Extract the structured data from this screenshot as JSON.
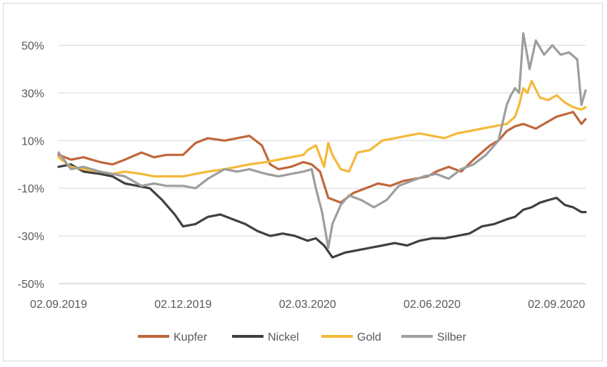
{
  "chart_data": {
    "type": "line",
    "title": "",
    "xlabel": "",
    "ylabel": "",
    "ylim": [
      -50,
      60
    ],
    "yticks": [
      -50,
      -30,
      -10,
      10,
      30,
      50
    ],
    "ytick_labels": [
      "-50%",
      "-30%",
      "-10%",
      "10%",
      "30%",
      "50%"
    ],
    "xtick_labels": [
      "02.09.2019",
      "02.12.2019",
      "02.03.2020",
      "02.06.2020",
      "02.09.2020"
    ],
    "xtick_positions": [
      0,
      3,
      6,
      9,
      12
    ],
    "x_range_months": [
      0,
      12.7
    ],
    "grid": "horizontal",
    "legend": "bottom",
    "series": [
      {
        "name": "Kupfer",
        "color": "#c0673a",
        "x": [
          0,
          0.3,
          0.6,
          1,
          1.3,
          1.6,
          2,
          2.3,
          2.6,
          3,
          3.3,
          3.6,
          4,
          4.3,
          4.6,
          4.9,
          5.1,
          5.3,
          5.6,
          5.9,
          6.1,
          6.3,
          6.5,
          6.8,
          7.1,
          7.4,
          7.7,
          8,
          8.3,
          8.6,
          8.9,
          9.1,
          9.4,
          9.7,
          10,
          10.2,
          10.4,
          10.6,
          10.8,
          11,
          11.2,
          11.5,
          11.8,
          12,
          12.2,
          12.4,
          12.6,
          12.7
        ],
        "values": [
          4,
          2,
          3,
          1,
          0,
          2,
          5,
          3,
          4,
          4,
          9,
          11,
          10,
          11,
          12,
          8,
          0,
          -2,
          -1,
          1,
          0,
          -3,
          -14,
          -16,
          -12,
          -10,
          -8,
          -9,
          -7,
          -6,
          -5,
          -3,
          -1,
          -3,
          2,
          5,
          8,
          10,
          14,
          16,
          17,
          15,
          18,
          20,
          21,
          22,
          17,
          19
        ]
      },
      {
        "name": "Nickel",
        "color": "#404040",
        "x": [
          0,
          0.3,
          0.6,
          1,
          1.3,
          1.6,
          1.9,
          2.2,
          2.5,
          2.8,
          3,
          3.3,
          3.6,
          3.9,
          4.2,
          4.5,
          4.8,
          5.1,
          5.4,
          5.7,
          6,
          6.2,
          6.4,
          6.6,
          6.9,
          7.2,
          7.5,
          7.8,
          8.1,
          8.4,
          8.7,
          9,
          9.3,
          9.6,
          9.9,
          10.2,
          10.5,
          10.8,
          11,
          11.2,
          11.4,
          11.6,
          11.8,
          12,
          12.2,
          12.4,
          12.6,
          12.7
        ],
        "values": [
          -1,
          0,
          -3,
          -4,
          -5,
          -8,
          -9,
          -10,
          -15,
          -21,
          -26,
          -25,
          -22,
          -21,
          -23,
          -25,
          -28,
          -30,
          -29,
          -30,
          -32,
          -31,
          -34,
          -39,
          -37,
          -36,
          -35,
          -34,
          -33,
          -34,
          -32,
          -31,
          -31,
          -30,
          -29,
          -26,
          -25,
          -23,
          -22,
          -19,
          -18,
          -16,
          -15,
          -14,
          -17,
          -18,
          -20,
          -20
        ]
      },
      {
        "name": "Gold",
        "color": "#f4b93a",
        "x": [
          0,
          0.3,
          0.6,
          1,
          1.3,
          1.6,
          2,
          2.3,
          2.6,
          3,
          3.3,
          3.6,
          4,
          4.3,
          4.6,
          5,
          5.3,
          5.6,
          5.9,
          6,
          6.2,
          6.4,
          6.5,
          6.6,
          6.8,
          7,
          7.2,
          7.5,
          7.8,
          8.1,
          8.4,
          8.7,
          9,
          9.3,
          9.6,
          9.9,
          10.2,
          10.5,
          10.8,
          11,
          11.1,
          11.2,
          11.3,
          11.4,
          11.6,
          11.8,
          12,
          12.2,
          12.4,
          12.6,
          12.7
        ],
        "values": [
          3,
          -1,
          -2,
          -3,
          -4,
          -3,
          -4,
          -5,
          -5,
          -5,
          -4,
          -3,
          -2,
          -1,
          0,
          1,
          2,
          3,
          4,
          6,
          8,
          -1,
          9,
          4,
          -2,
          -3,
          5,
          6,
          10,
          11,
          12,
          13,
          12,
          11,
          13,
          14,
          15,
          16,
          17,
          20,
          25,
          32,
          30,
          35,
          28,
          27,
          29,
          26,
          24,
          23,
          24
        ]
      },
      {
        "name": "Silber",
        "color": "#9e9e9e",
        "x": [
          0,
          0.3,
          0.6,
          1,
          1.3,
          1.6,
          2,
          2.3,
          2.6,
          3,
          3.3,
          3.6,
          4,
          4.3,
          4.6,
          5,
          5.3,
          5.6,
          5.9,
          6.1,
          6.2,
          6.35,
          6.5,
          6.6,
          6.8,
          7,
          7.3,
          7.6,
          7.9,
          8.2,
          8.5,
          8.8,
          9.1,
          9.4,
          9.7,
          10,
          10.3,
          10.6,
          10.8,
          10.9,
          11,
          11.1,
          11.2,
          11.35,
          11.5,
          11.7,
          11.9,
          12.1,
          12.3,
          12.5,
          12.6,
          12.7
        ],
        "values": [
          5,
          -2,
          -1,
          -3,
          -4,
          -5,
          -9,
          -8,
          -9,
          -9,
          -10,
          -6,
          -2,
          -3,
          -2,
          -4,
          -5,
          -4,
          -3,
          -2,
          -10,
          -20,
          -35,
          -25,
          -17,
          -13,
          -15,
          -18,
          -15,
          -9,
          -7,
          -5,
          -4,
          -6,
          -2,
          0,
          4,
          10,
          25,
          29,
          32,
          30,
          55,
          40,
          52,
          46,
          50,
          46,
          47,
          44,
          25,
          31
        ]
      }
    ]
  }
}
